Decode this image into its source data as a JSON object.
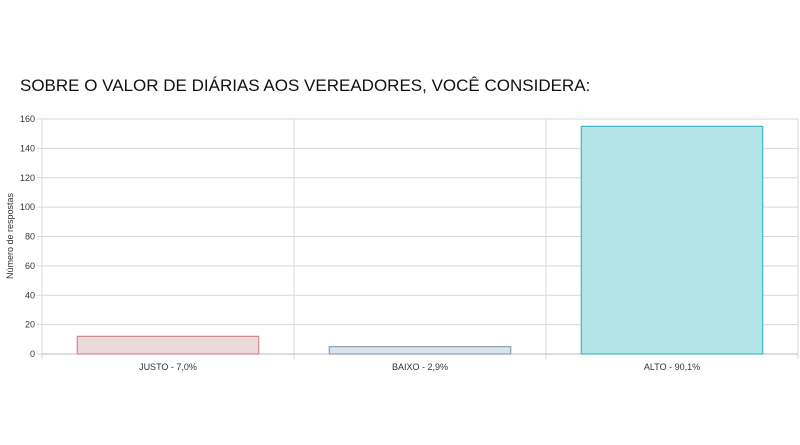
{
  "chart_data": {
    "type": "bar",
    "title": "SOBRE O VALOR DE DIÁRIAS AOS VEREADORES, VOCÊ CONSIDERA:",
    "xlabel": "",
    "ylabel": "Número de respostas",
    "categories": [
      "JUSTO - 7,0%",
      "BAIXO - 2,9%",
      "ALTO - 90,1%"
    ],
    "values": [
      12,
      5,
      155
    ],
    "ylim": [
      0,
      160
    ],
    "yticks": [
      0,
      20,
      40,
      60,
      80,
      100,
      120,
      140,
      160
    ],
    "grid": true,
    "legend": "none",
    "bar_fill_colors": [
      "#ecd9db",
      "#dde3ea",
      "#b3e5e8"
    ],
    "bar_stroke_colors": [
      "#c98a91",
      "#8da2b4",
      "#3fb7bf"
    ]
  }
}
